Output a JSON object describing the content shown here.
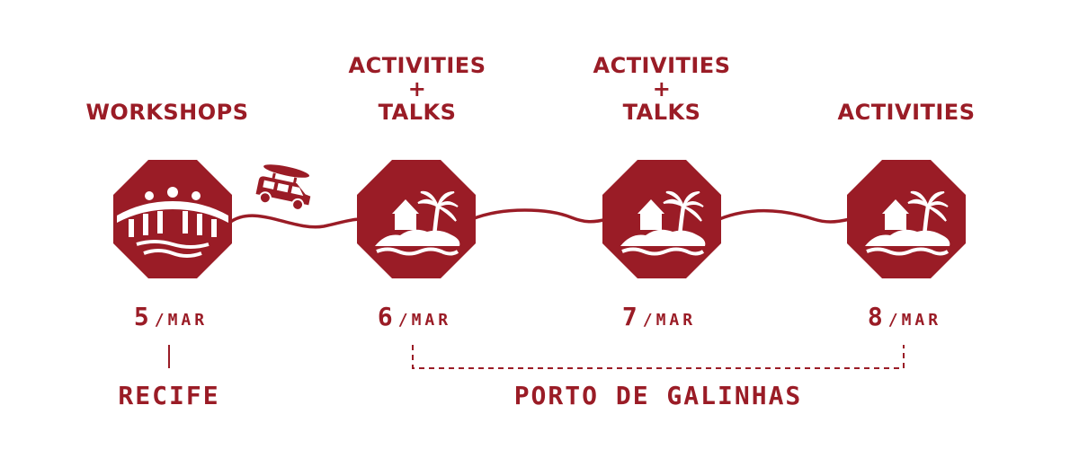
{
  "colors": {
    "accent": "#9a1c26",
    "background": "#ffffff"
  },
  "stops": [
    {
      "header": [
        "WORKSHOPS"
      ],
      "day": "5",
      "month": "/MAR",
      "icon": "bridge-river-icon"
    },
    {
      "header": [
        "ACTIVITIES",
        "+",
        "TALKS"
      ],
      "day": "6",
      "month": "/MAR",
      "icon": "island-house-palm-icon"
    },
    {
      "header": [
        "ACTIVITIES",
        "+",
        "TALKS"
      ],
      "day": "7",
      "month": "/MAR",
      "icon": "island-house-palm-icon"
    },
    {
      "header": [
        "ACTIVITIES"
      ],
      "day": "8",
      "month": "/MAR",
      "icon": "island-house-palm-icon"
    }
  ],
  "transport_icon": "car-with-surfboard-icon",
  "places": {
    "first": "RECIFE",
    "second": "PORTO DE GALINHAS"
  }
}
